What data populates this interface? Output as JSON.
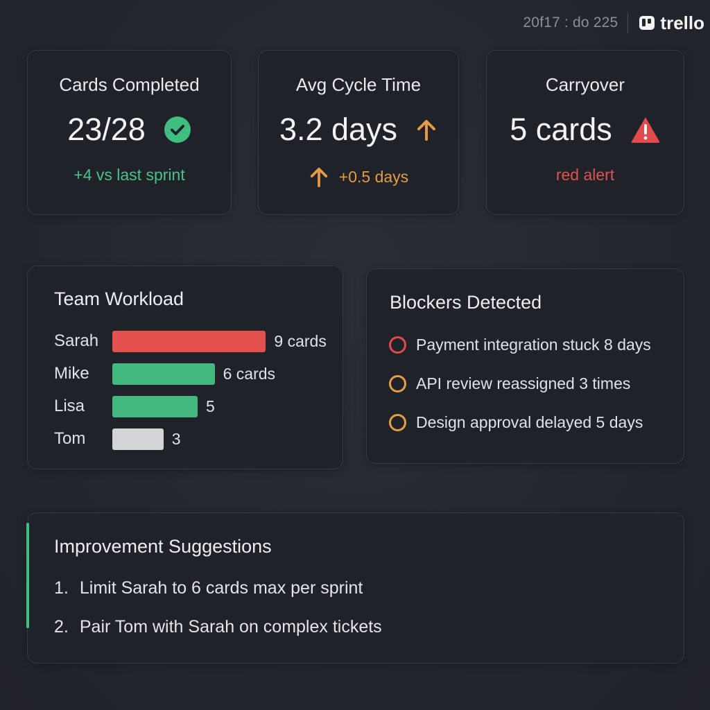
{
  "header": {
    "session_text": "20f17 : do 225",
    "brand_name": "trello"
  },
  "stats": {
    "completed": {
      "label": "Cards Completed",
      "value": "23/28",
      "sub": "+4 vs last sprint",
      "status_icon": "check-circle-icon"
    },
    "cycle": {
      "label": "Avg Cycle Time",
      "value": "3.2 days",
      "sub": "+0.5 days",
      "trend_icon": "arrow-up-icon"
    },
    "carryover": {
      "label": "Carryover",
      "value": "5 cards",
      "sub": "red alert",
      "status_icon": "warning-triangle-icon"
    }
  },
  "workload": {
    "title": "Team Workload",
    "members": [
      {
        "name": "Sarah",
        "cards": 9,
        "count_label": "9 cards",
        "color": "#e4504d"
      },
      {
        "name": "Mike",
        "cards": 6,
        "count_label": "6 cards",
        "color": "#43b97f"
      },
      {
        "name": "Lisa",
        "cards": 5,
        "count_label": "5",
        "color": "#43b97f"
      },
      {
        "name": "Tom",
        "cards": 3,
        "count_label": "3",
        "color": "#d2d4d8"
      }
    ]
  },
  "blockers": {
    "title": "Blockers Detected",
    "items": [
      {
        "text": "Payment integration stuck 8 days",
        "color": "#e24b4b"
      },
      {
        "text": "API review reassigned 3 times",
        "color": "#e4a040"
      },
      {
        "text": "Design approval delayed 5 days",
        "color": "#e4a040"
      }
    ]
  },
  "suggestions": {
    "title": "Improvement Suggestions",
    "items": [
      {
        "num": "1.",
        "text": "Limit Sarah to 6 cards max per sprint"
      },
      {
        "num": "2.",
        "text": "Pair Tom with Sarah on complex tickets"
      }
    ]
  },
  "colors": {
    "green": "#4cc38a",
    "orange": "#e59a45",
    "red": "#e05353"
  }
}
